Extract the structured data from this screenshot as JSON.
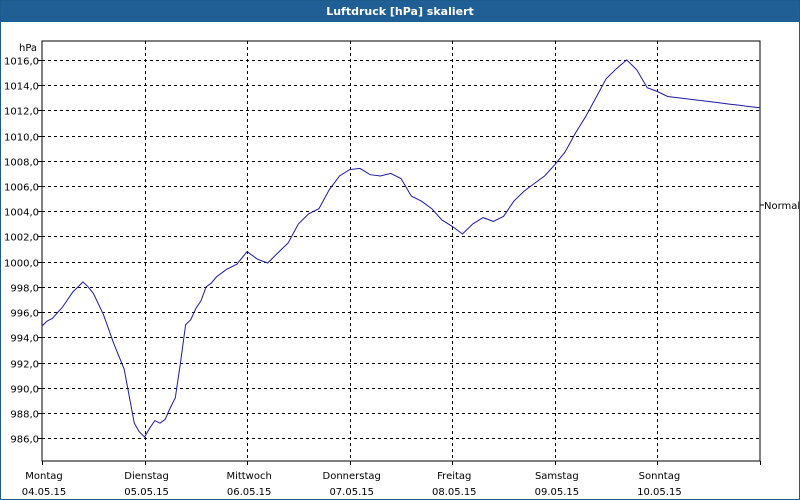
{
  "window": {
    "title": "Luftdruck [hPa] skaliert"
  },
  "chart_data": {
    "type": "line",
    "title": "Luftdruck [hPa] skaliert",
    "unit_label": "hPa",
    "reference_label": "Normal",
    "reference_value": 1004.5,
    "ylim": [
      984.2,
      1017.5
    ],
    "xlim": [
      0,
      7
    ],
    "grid": true,
    "yticks": [
      "1016,0",
      "1014,0",
      "1012,0",
      "1010,0",
      "1008,0",
      "1006,0",
      "1004,0",
      "1002,0",
      "1000,0",
      "998,0",
      "996,0",
      "994,0",
      "992,0",
      "990,0",
      "988,0",
      "986,0"
    ],
    "ytick_values": [
      1016,
      1014,
      1012,
      1010,
      1008,
      1006,
      1004,
      1002,
      1000,
      998,
      996,
      994,
      992,
      990,
      988,
      986
    ],
    "xticks": [
      {
        "day": "Montag",
        "date": "04.05.15"
      },
      {
        "day": "Dienstag",
        "date": "05.05.15"
      },
      {
        "day": "Mittwoch",
        "date": "06.05.15"
      },
      {
        "day": "Donnerstag",
        "date": "07.05.15"
      },
      {
        "day": "Freitag",
        "date": "08.05.15"
      },
      {
        "day": "Samstag",
        "date": "09.05.15"
      },
      {
        "day": "Sonntag",
        "date": "10.05.15"
      }
    ],
    "series": [
      {
        "color": "#1a1aa8",
        "x": [
          0,
          0.05,
          0.1,
          0.2,
          0.3,
          0.4,
          0.45,
          0.5,
          0.6,
          0.7,
          0.8,
          0.9,
          0.95,
          1.0,
          1.05,
          1.1,
          1.15,
          1.2,
          1.25,
          1.3,
          1.35,
          1.4,
          1.45,
          1.5,
          1.55,
          1.6,
          1.65,
          1.7,
          1.8,
          1.9,
          2.0,
          2.1,
          2.2,
          2.3,
          2.4,
          2.5,
          2.6,
          2.7,
          2.8,
          2.9,
          3.0,
          3.1,
          3.2,
          3.3,
          3.4,
          3.5,
          3.6,
          3.7,
          3.8,
          3.9,
          4.0,
          4.1,
          4.2,
          4.3,
          4.4,
          4.5,
          4.6,
          4.7,
          4.8,
          4.9,
          5.0,
          5.1,
          5.2,
          5.3,
          5.4,
          5.5,
          5.6,
          5.7,
          5.8,
          5.9,
          6.0,
          6.1,
          6.2,
          6.3,
          6.4,
          6.5,
          6.6,
          6.7,
          6.8,
          6.9,
          7.0
        ],
        "values": [
          994.9,
          995.3,
          995.5,
          996.4,
          997.6,
          998.4,
          998.0,
          997.5,
          995.8,
          993.5,
          991.5,
          987.2,
          986.5,
          986.1,
          986.8,
          987.4,
          987.2,
          987.5,
          988.4,
          989.2,
          992.0,
          995.0,
          995.4,
          996.3,
          996.9,
          998.0,
          998.3,
          998.8,
          999.4,
          999.8,
          1000.8,
          1000.2,
          999.9,
          1000.7,
          1001.5,
          1003.0,
          1003.8,
          1004.2,
          1005.7,
          1006.8,
          1007.3,
          1007.4,
          1006.9,
          1006.8,
          1007.0,
          1006.6,
          1005.2,
          1004.8,
          1004.2,
          1003.3,
          1002.8,
          1002.2,
          1003.0,
          1003.5,
          1003.2,
          1003.6,
          1004.8,
          1005.6,
          1006.2,
          1006.8,
          1007.7,
          1008.7,
          1010.2,
          1011.5,
          1013.0,
          1014.5,
          1015.3,
          1016.0,
          1015.2,
          1013.8,
          1013.5,
          1013.1,
          1013.0,
          1012.9,
          1012.8,
          1012.7,
          1012.6,
          1012.5,
          1012.4,
          1012.3,
          1012.2
        ]
      }
    ]
  }
}
